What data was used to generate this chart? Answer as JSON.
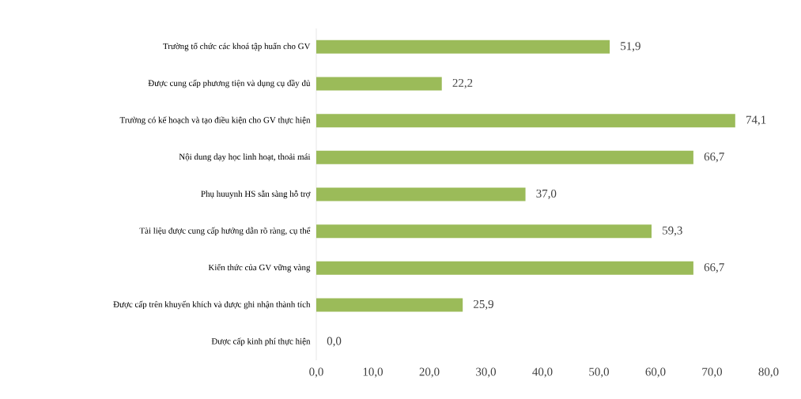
{
  "chart_data": {
    "type": "bar",
    "orientation": "horizontal",
    "categories": [
      "Trường tổ chức các khoá tập huấn cho GV",
      "Được cung cấp phương tiện và dụng cụ đầy đủ",
      "Trường có kế hoạch và tạo điều kiện cho GV thực hiện",
      "Nội dung dạy học linh hoạt, thoải mái",
      "Phụ huuynh HS sẵn sàng hỗ trợ",
      "Tài liệu được cung cấp hướng dẫn rõ ràng, cụ thể",
      "Kiến thức của GV vững vàng",
      "Được cấp trên khuyến khích và được ghi nhận thành tích",
      "Được cấp kinh phí thực hiện"
    ],
    "values": [
      51.9,
      22.2,
      74.1,
      66.7,
      37.0,
      59.3,
      66.7,
      25.9,
      0.0
    ],
    "value_labels": [
      "51,9",
      "22,2",
      "74,1",
      "66,7",
      "37,0",
      "59,3",
      "66,7",
      "25,9",
      "0,0"
    ],
    "color": "#9bbb59",
    "xlim": [
      0,
      80
    ],
    "xticks": [
      {
        "value": 0,
        "label": "0,0"
      },
      {
        "value": 10,
        "label": "10,0"
      },
      {
        "value": 20,
        "label": "20,0"
      },
      {
        "value": 30,
        "label": "30,0"
      },
      {
        "value": 40,
        "label": "40,0"
      },
      {
        "value": 50,
        "label": "50,0"
      },
      {
        "value": 60,
        "label": "60,0"
      },
      {
        "value": 70,
        "label": "70,0"
      },
      {
        "value": 80,
        "label": "80,0"
      }
    ],
    "grid": false
  }
}
